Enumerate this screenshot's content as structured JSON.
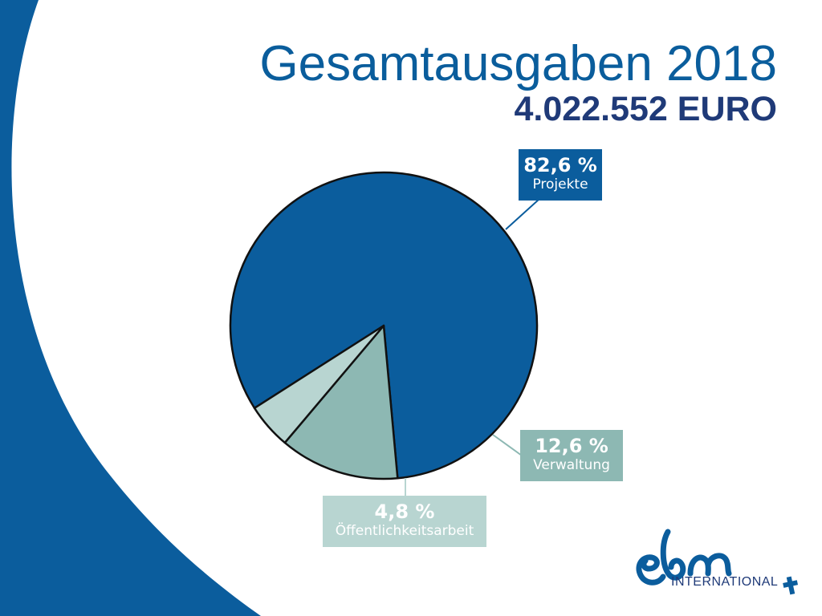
{
  "slide": {
    "title": "Gesamtausgaben 2018",
    "subtitle": "4.022.552 EURO"
  },
  "colors": {
    "brand_blue": "#0b5d9d",
    "title_blue": "#0a5d9c",
    "subtitle_navy": "#1f3a78",
    "verwaltung_teal": "#8db8b3",
    "oeffentlichkeit_light": "#b8d5d1"
  },
  "chart_data": {
    "type": "pie",
    "title": "",
    "slices": [
      {
        "label": "Projekte",
        "value": 82.6,
        "value_label": "82,6 %",
        "color": "#0b5d9d"
      },
      {
        "label": "Verwaltung",
        "value": 12.6,
        "value_label": "12,6 %",
        "color": "#8db8b3"
      },
      {
        "label": "Öffentlichkeitsarbeit",
        "value": 4.8,
        "value_label": "4,8 %",
        "color": "#b8d5d1"
      }
    ],
    "legend": "none"
  },
  "logo": {
    "mark": "ebm",
    "text": "INTERNATIONAL",
    "icon": "cross-icon"
  }
}
